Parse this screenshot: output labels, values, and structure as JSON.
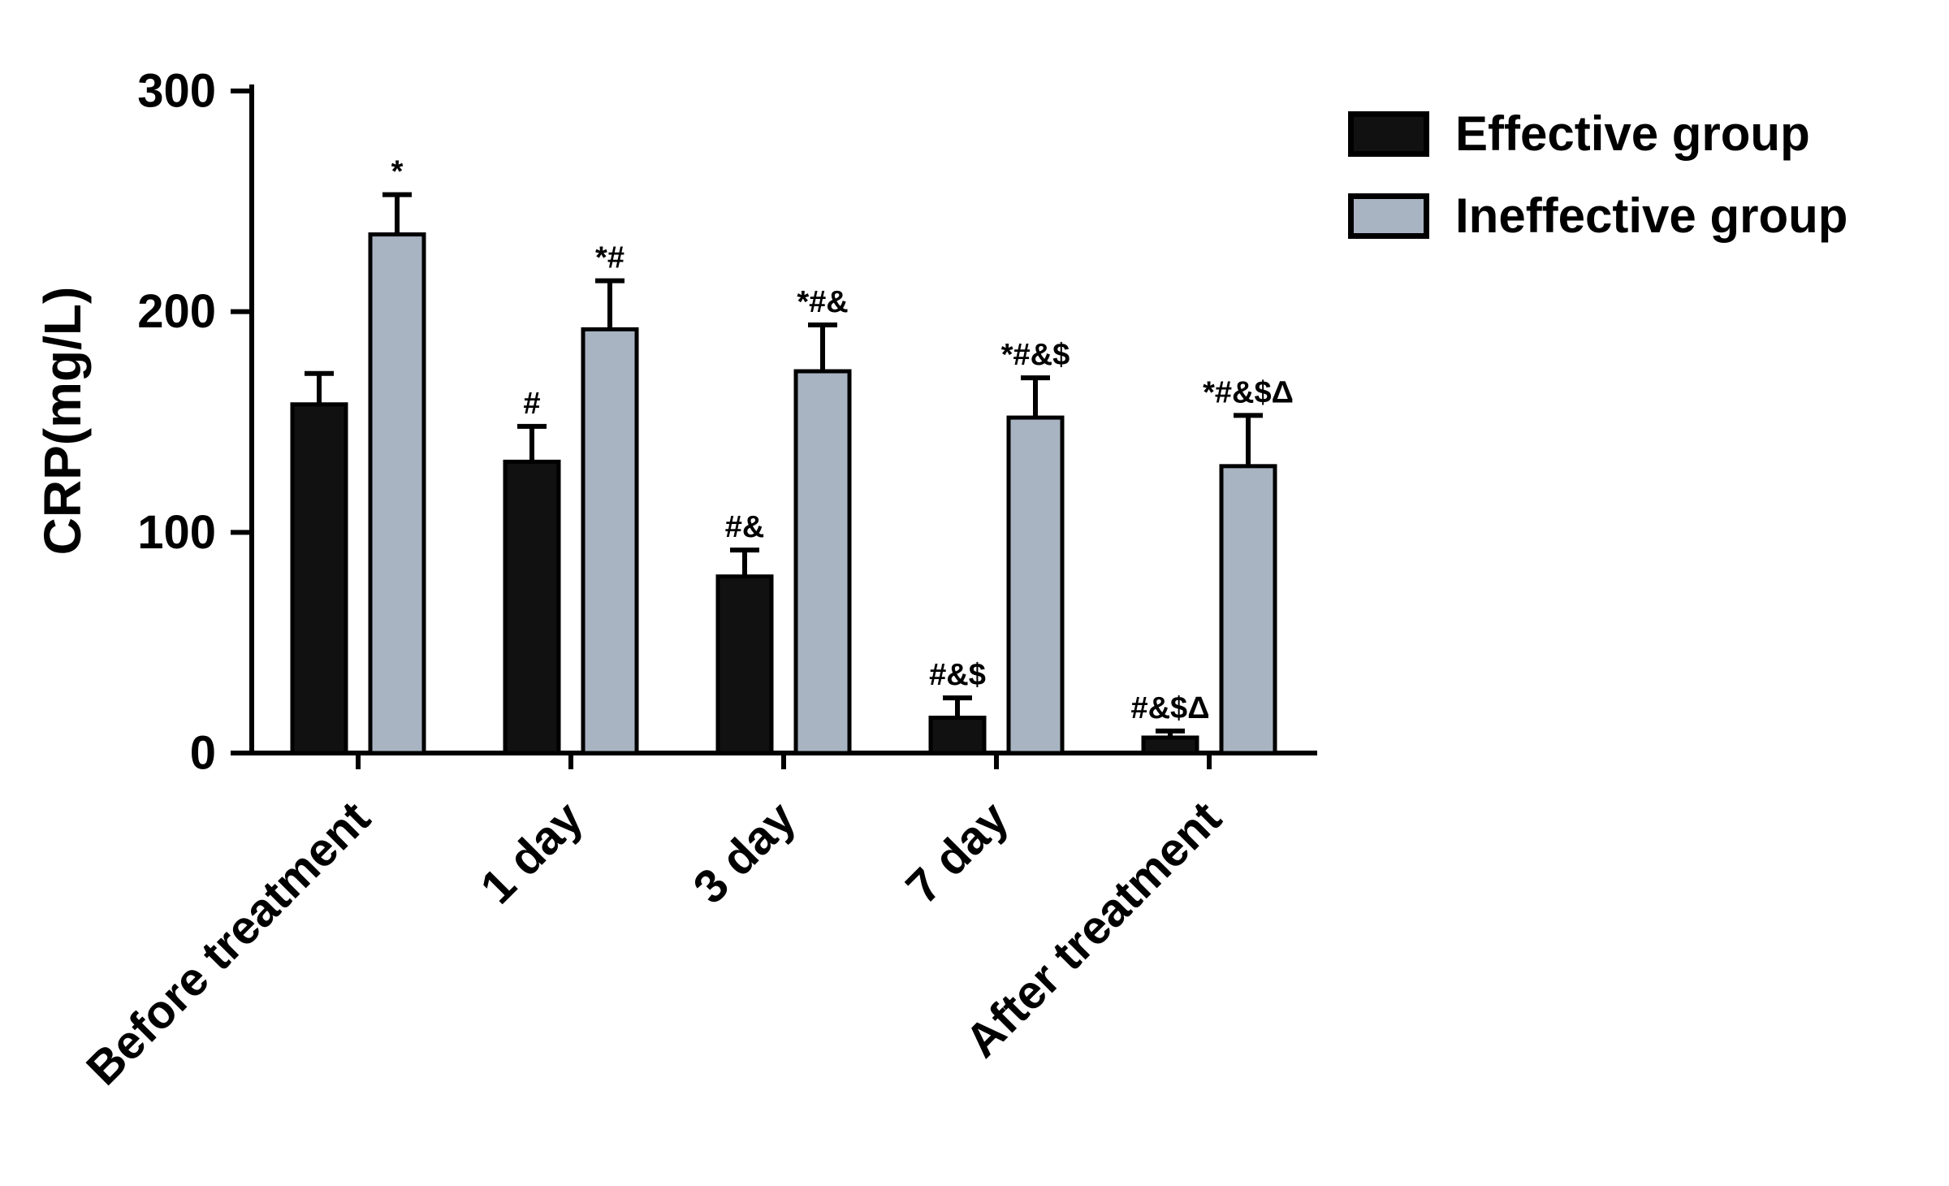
{
  "figure": {
    "background": "#ffffff"
  },
  "chart_data": {
    "type": "bar",
    "title": "",
    "ylabel": "CRP(mg/L)",
    "xlabel": "",
    "ylim": [
      0,
      300
    ],
    "yticks": [
      0,
      100,
      200,
      300
    ],
    "categories": [
      "Before treatment",
      "1 day",
      "3 day",
      "7 day",
      "After treatment"
    ],
    "series": [
      {
        "name": "Effective group",
        "color": "#111111",
        "values": [
          158,
          132,
          80,
          16,
          7
        ],
        "errors": [
          14,
          16,
          12,
          9,
          3
        ],
        "annotations": [
          "",
          "#",
          "#&",
          "#&$",
          "#&$Δ"
        ]
      },
      {
        "name": "Ineffective group",
        "color": "#a8b4c2",
        "values": [
          235,
          192,
          173,
          152,
          130
        ],
        "errors": [
          18,
          22,
          21,
          18,
          23
        ],
        "annotations": [
          "*",
          "*#",
          "*#&",
          "*#&$",
          "*#&$Δ"
        ]
      }
    ],
    "legend_position": "top-right",
    "grid": false,
    "axis_color": "#000000",
    "error_bar_color": "#000000"
  }
}
